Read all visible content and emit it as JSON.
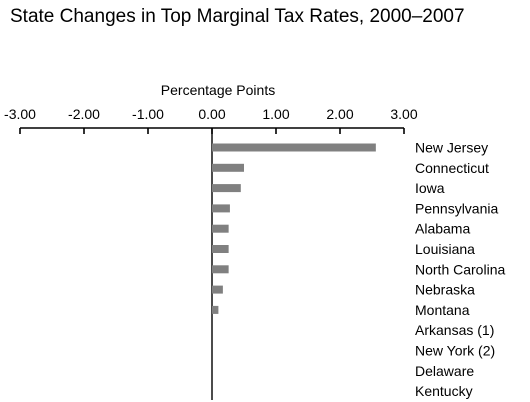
{
  "chart_data": {
    "type": "bar",
    "orientation": "horizontal",
    "title": "State Changes in Top Marginal Tax Rates, 2000–2007",
    "xlabel": "Percentage Points",
    "x_axis_position": "top",
    "xlim": [
      -3.0,
      3.0
    ],
    "xticks": [
      "-3.00",
      "-2.00",
      "-1.00",
      "0.00",
      "1.00",
      "2.00",
      "3.00"
    ],
    "bar_color": "#808080",
    "categories": [
      "New Jersey",
      "Connecticut",
      "Iowa",
      "Pennsylvania",
      "Alabama",
      "Louisiana",
      "North Carolina",
      "Nebraska",
      "Montana",
      "Arkansas (1)",
      "New York (2)",
      "Delaware",
      "Kentucky"
    ],
    "values": [
      2.56,
      0.5,
      0.45,
      0.28,
      0.26,
      0.26,
      0.26,
      0.17,
      0.1,
      0.0,
      0.0,
      0.0,
      0.0
    ]
  }
}
